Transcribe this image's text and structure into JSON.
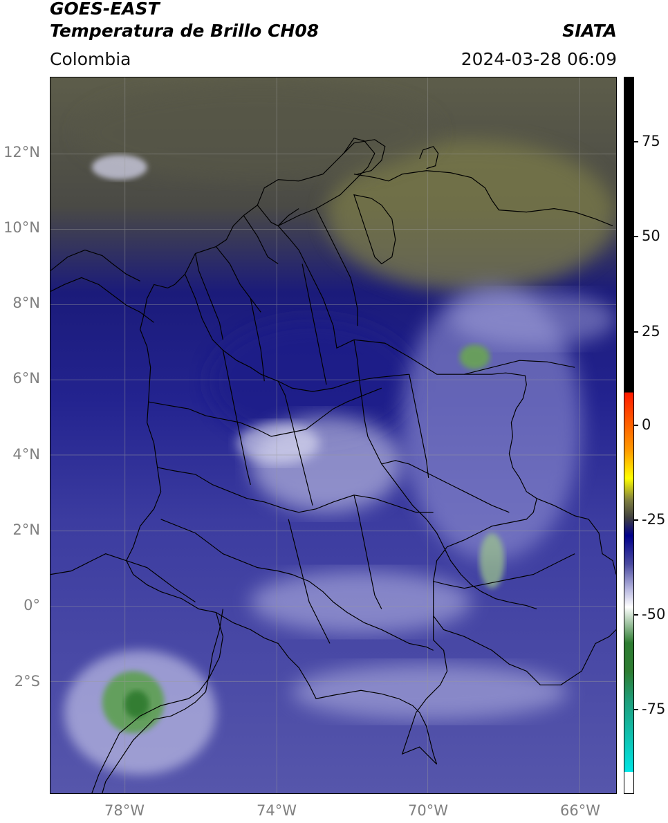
{
  "header": {
    "title_line1": "GOES-EAST",
    "title_line2": "Temperatura de Brillo CH08",
    "organization": "SIATA",
    "region": "Colombia",
    "datetime": "2024-03-28 06:09"
  },
  "map": {
    "latitude_labels": [
      "12°N",
      "10°N",
      "8°N",
      "6°N",
      "4°N",
      "2°N",
      "0°",
      "2°S"
    ],
    "longitude_labels": [
      "78°W",
      "74°W",
      "70°W",
      "66°W"
    ],
    "grid_color": "#9a9a9a",
    "border_color": "#000000"
  },
  "colorbar": {
    "tick_labels": [
      "75",
      "50",
      "25",
      "0",
      "-25",
      "-50",
      "-75"
    ],
    "colors": {
      "warm_black": "#000000",
      "red": "#ff1a00",
      "orange": "#ff9900",
      "yellow": "#ffff00",
      "olive": "#808040",
      "dark_gray": "#404040",
      "navy": "#00008b",
      "slate_blue": "#4b4ba0",
      "lavender": "#b8b8e0",
      "white": "#ffffff",
      "green": "#2e7d32",
      "cyan": "#00e5e5"
    }
  }
}
